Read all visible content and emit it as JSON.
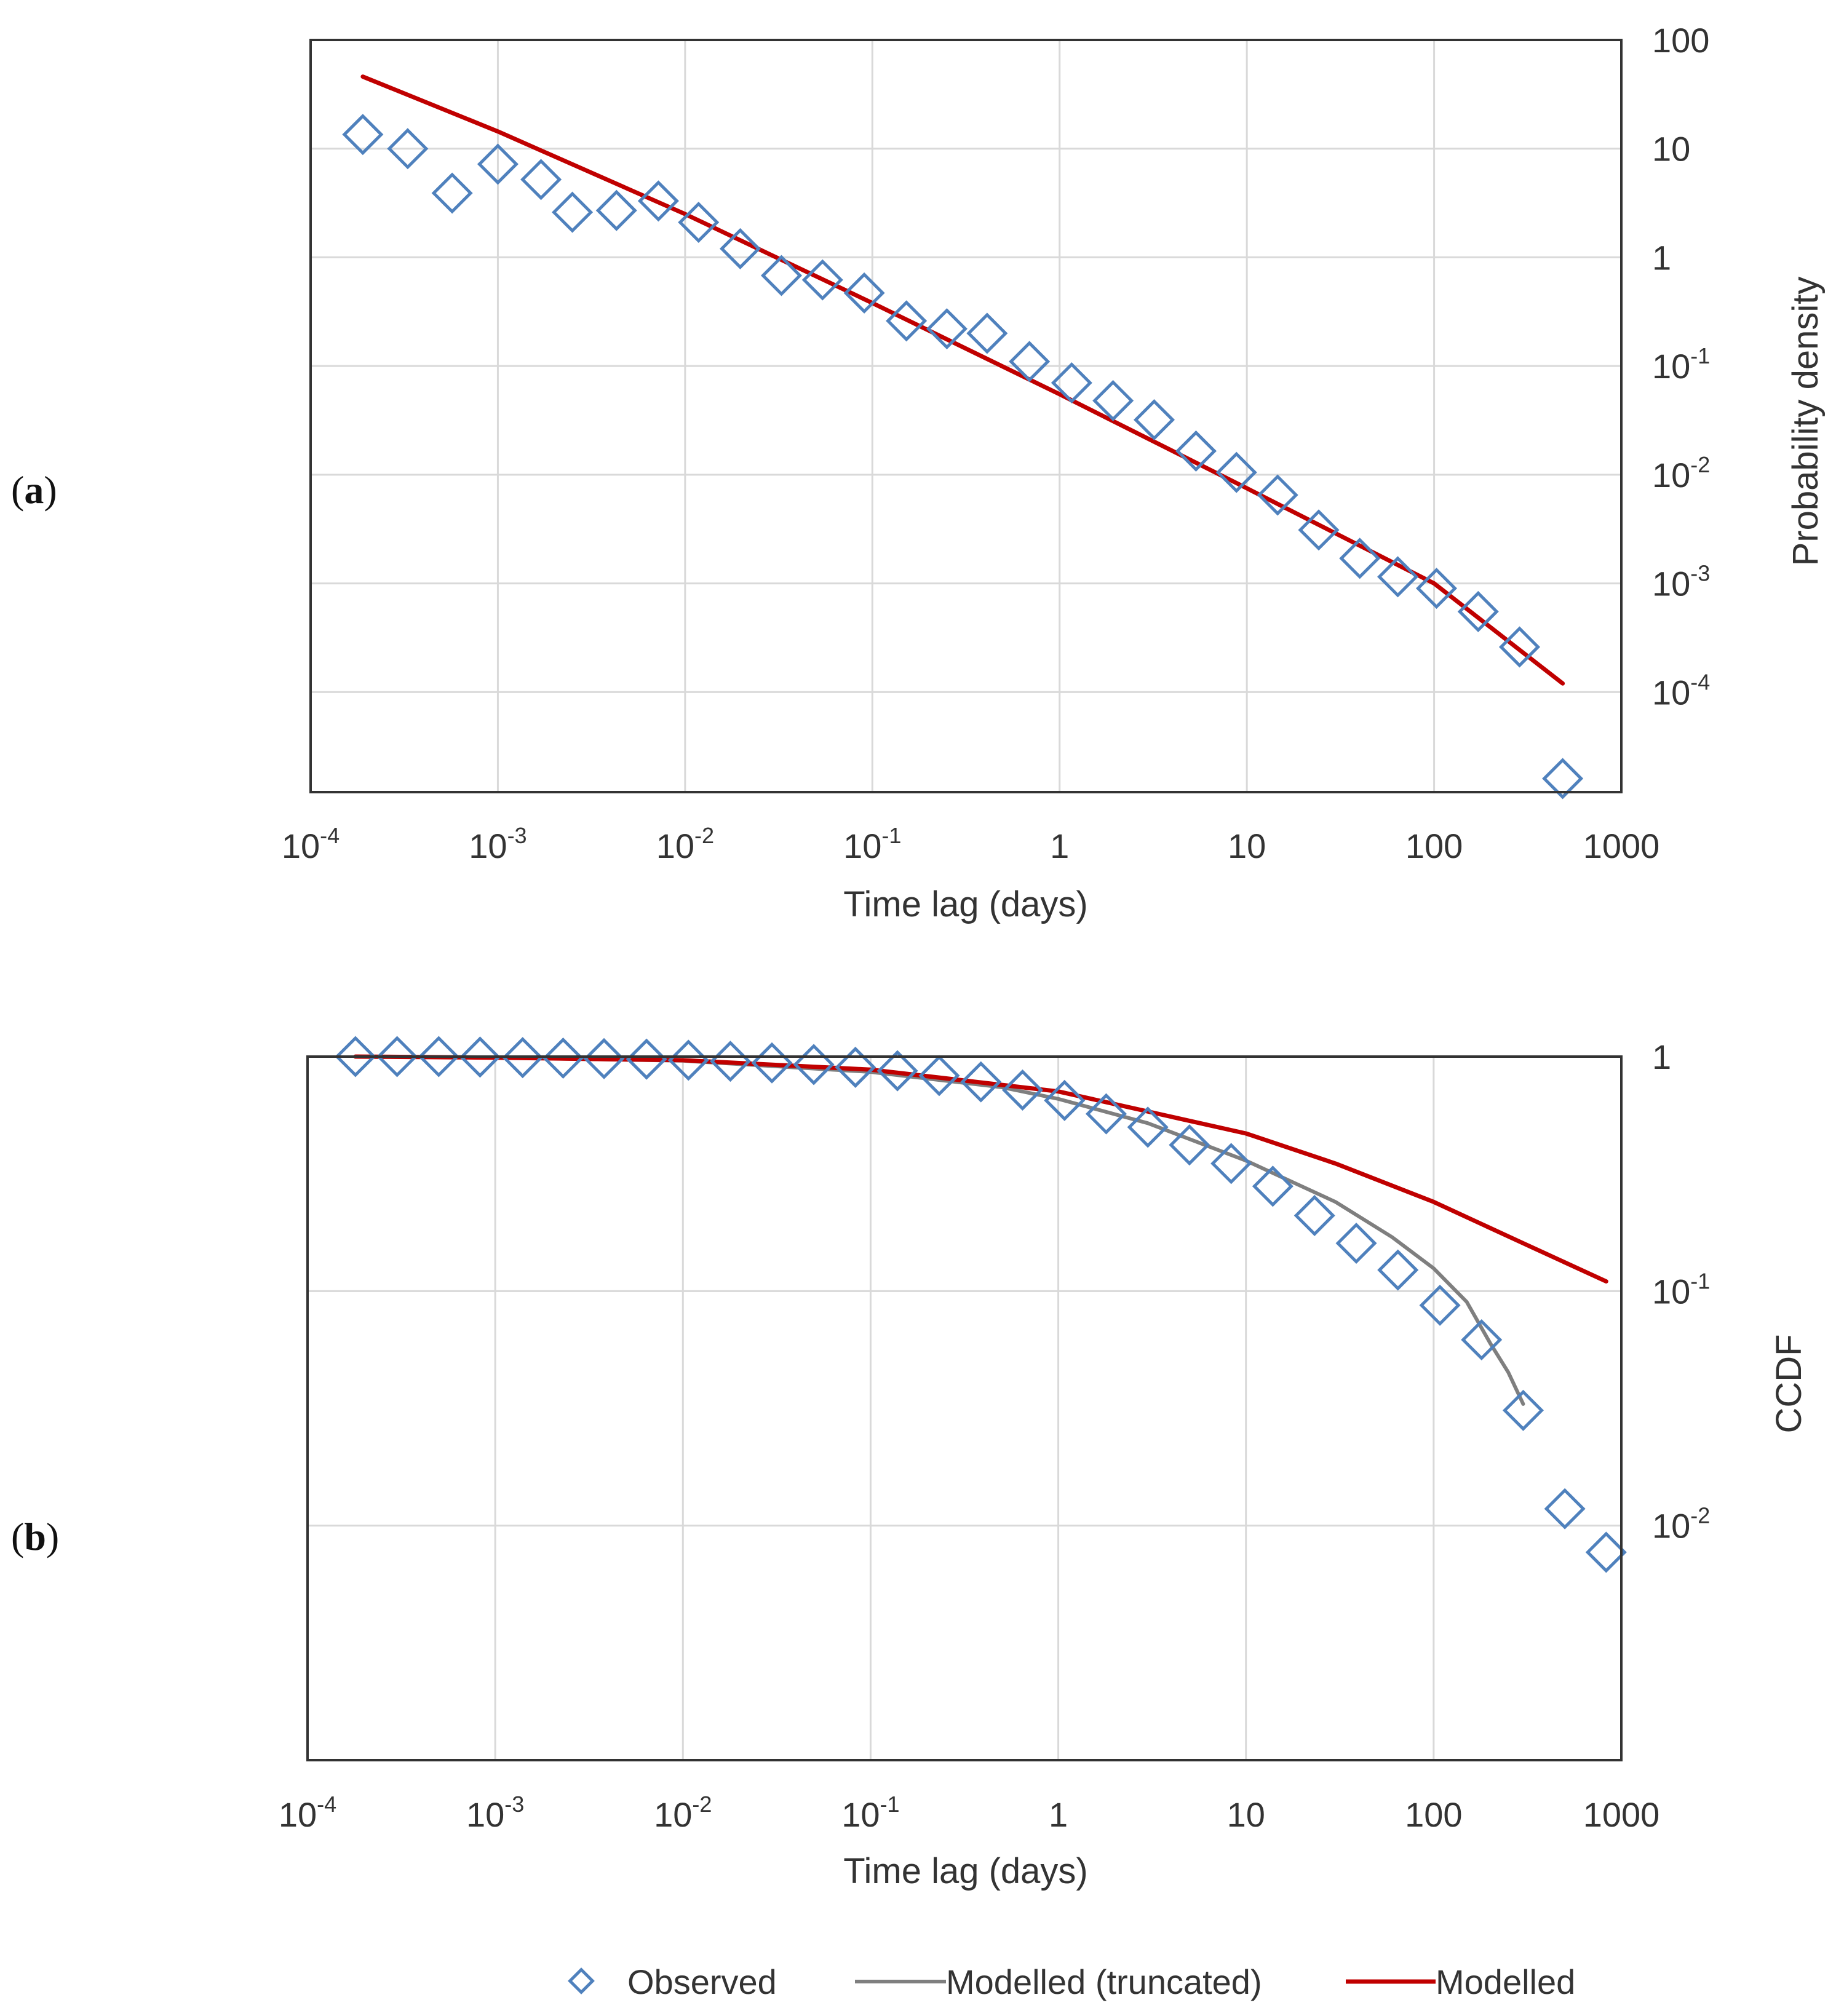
{
  "panels": [
    {
      "label_open": "(",
      "label_letter": "a",
      "label_close": ")"
    },
    {
      "label_open": "(",
      "label_letter": "b",
      "label_close": ")"
    }
  ],
  "colors": {
    "observed": "#4f81bd",
    "modelled": "#c00000",
    "truncated": "#7f7f7f"
  },
  "legend": {
    "observed": "Observed",
    "truncated": "Modelled (truncated)",
    "modelled": "Modelled"
  },
  "chart_data": [
    {
      "type": "scatter",
      "panel": "a",
      "title": "",
      "xlabel": "Time lag (days)",
      "ylabel": "Probability density",
      "xscale": "log",
      "yscale": "log",
      "xlim": [
        0.0001,
        1000
      ],
      "ylim": [
        1.2e-05,
        100
      ],
      "x_ticks": [
        {
          "value": 0.0001,
          "base": "10",
          "exp": "-4"
        },
        {
          "value": 0.001,
          "base": "10",
          "exp": "-3"
        },
        {
          "value": 0.01,
          "base": "10",
          "exp": "-2"
        },
        {
          "value": 0.1,
          "base": "10",
          "exp": "-1"
        },
        {
          "value": 1,
          "base": "1",
          "exp": ""
        },
        {
          "value": 10,
          "base": "10",
          "exp": ""
        },
        {
          "value": 100,
          "base": "100",
          "exp": ""
        },
        {
          "value": 1000,
          "base": "1000",
          "exp": ""
        }
      ],
      "y_ticks": [
        {
          "value": 100,
          "base": "100",
          "exp": ""
        },
        {
          "value": 10,
          "base": "10",
          "exp": ""
        },
        {
          "value": 1,
          "base": "1",
          "exp": ""
        },
        {
          "value": 0.1,
          "base": "10",
          "exp": "-1"
        },
        {
          "value": 0.01,
          "base": "10",
          "exp": "-2"
        },
        {
          "value": 0.001,
          "base": "10",
          "exp": "-3"
        },
        {
          "value": 0.0001,
          "base": "10",
          "exp": "-4"
        }
      ],
      "grid": true,
      "y_axis_side": "right",
      "series": [
        {
          "name": "Observed",
          "kind": "markers",
          "color_key": "observed",
          "points": [
            [
              0.00019,
              13.5
            ],
            [
              0.00033,
              10.0
            ],
            [
              0.00057,
              3.9
            ],
            [
              0.001,
              7.2
            ],
            [
              0.0017,
              5.2
            ],
            [
              0.0025,
              2.6
            ],
            [
              0.0043,
              2.7
            ],
            [
              0.0072,
              3.3
            ],
            [
              0.0118,
              2.1
            ],
            [
              0.0197,
              1.2
            ],
            [
              0.0327,
              0.68
            ],
            [
              0.0542,
              0.62
            ],
            [
              0.0905,
              0.47
            ],
            [
              0.152,
              0.26
            ],
            [
              0.25,
              0.22
            ],
            [
              0.41,
              0.2
            ],
            [
              0.69,
              0.11
            ],
            [
              1.16,
              0.07
            ],
            [
              1.93,
              0.048
            ],
            [
              3.2,
              0.032
            ],
            [
              5.35,
              0.0165
            ],
            [
              8.8,
              0.0105
            ],
            [
              14.6,
              0.0065
            ],
            [
              24.2,
              0.0031
            ],
            [
              40.1,
              0.0017
            ],
            [
              64,
              0.00115
            ],
            [
              103,
              0.0009
            ],
            [
              172,
              0.00055
            ],
            [
              286,
              0.00026
            ],
            [
              486,
              1.6e-05
            ]
          ]
        },
        {
          "name": "Modelled",
          "kind": "line",
          "color_key": "modelled",
          "points": [
            [
              0.00019,
              46
            ],
            [
              0.001,
              14.4
            ],
            [
              0.01,
              2.5
            ],
            [
              0.1,
              0.38
            ],
            [
              1,
              0.055
            ],
            [
              10,
              0.0075
            ],
            [
              100,
              0.001
            ],
            [
              486,
              0.00012
            ]
          ]
        }
      ]
    },
    {
      "type": "scatter",
      "panel": "b",
      "title": "",
      "xlabel": "Time lag (days)",
      "ylabel": "CCDF",
      "xscale": "log",
      "yscale": "log",
      "xlim": [
        0.0001,
        1000
      ],
      "ylim": [
        0.001,
        1
      ],
      "x_ticks": [
        {
          "value": 0.0001,
          "base": "10",
          "exp": "-4"
        },
        {
          "value": 0.001,
          "base": "10",
          "exp": "-3"
        },
        {
          "value": 0.01,
          "base": "10",
          "exp": "-2"
        },
        {
          "value": 0.1,
          "base": "10",
          "exp": "-1"
        },
        {
          "value": 1,
          "base": "1",
          "exp": ""
        },
        {
          "value": 10,
          "base": "10",
          "exp": ""
        },
        {
          "value": 100,
          "base": "100",
          "exp": ""
        },
        {
          "value": 1000,
          "base": "1000",
          "exp": ""
        }
      ],
      "y_ticks": [
        {
          "value": 1,
          "base": "1",
          "exp": ""
        },
        {
          "value": 0.1,
          "base": "10",
          "exp": "-1"
        },
        {
          "value": 0.01,
          "base": "10",
          "exp": "-2"
        }
      ],
      "grid": true,
      "y_axis_side": "right",
      "series": [
        {
          "name": "Observed",
          "kind": "markers",
          "color_key": "observed",
          "points": [
            [
              0.00018,
              1.0
            ],
            [
              0.0003,
              1.0
            ],
            [
              0.0005,
              1.0
            ],
            [
              0.00083,
              0.995
            ],
            [
              0.0014,
              0.99
            ],
            [
              0.0023,
              0.985
            ],
            [
              0.0038,
              0.98
            ],
            [
              0.0064,
              0.975
            ],
            [
              0.0107,
              0.965
            ],
            [
              0.0179,
              0.955
            ],
            [
              0.0298,
              0.94
            ],
            [
              0.0498,
              0.925
            ],
            [
              0.083,
              0.9
            ],
            [
              0.139,
              0.87
            ],
            [
              0.232,
              0.83
            ],
            [
              0.387,
              0.78
            ],
            [
              0.645,
              0.72
            ],
            [
              1.08,
              0.65
            ],
            [
              1.8,
              0.57
            ],
            [
              3.0,
              0.5
            ],
            [
              5.0,
              0.42
            ],
            [
              8.34,
              0.35
            ],
            [
              13.9,
              0.28
            ],
            [
              23.2,
              0.21
            ],
            [
              38.7,
              0.16
            ],
            [
              64.5,
              0.123
            ],
            [
              108,
              0.087
            ],
            [
              180,
              0.062
            ],
            [
              300,
              0.031
            ],
            [
              500,
              0.0118
            ],
            [
              830,
              0.0077
            ]
          ]
        },
        {
          "name": "Modelled (truncated)",
          "kind": "line",
          "color_key": "truncated",
          "points": [
            [
              0.00018,
              1.0
            ],
            [
              0.001,
              0.99
            ],
            [
              0.01,
              0.96
            ],
            [
              0.1,
              0.86
            ],
            [
              0.5,
              0.74
            ],
            [
              1,
              0.66
            ],
            [
              3,
              0.52
            ],
            [
              10,
              0.36
            ],
            [
              30,
              0.24
            ],
            [
              60,
              0.17
            ],
            [
              100,
              0.125
            ],
            [
              150,
              0.09
            ],
            [
              200,
              0.06
            ],
            [
              250,
              0.045
            ],
            [
              300,
              0.033
            ]
          ]
        },
        {
          "name": "Modelled",
          "kind": "line",
          "color_key": "modelled",
          "points": [
            [
              0.00018,
              1.0
            ],
            [
              0.001,
              0.99
            ],
            [
              0.01,
              0.965
            ],
            [
              0.1,
              0.88
            ],
            [
              1,
              0.71
            ],
            [
              10,
              0.47
            ],
            [
              30,
              0.35
            ],
            [
              100,
              0.24
            ],
            [
              300,
              0.16
            ],
            [
              830,
              0.11
            ]
          ]
        }
      ]
    }
  ]
}
